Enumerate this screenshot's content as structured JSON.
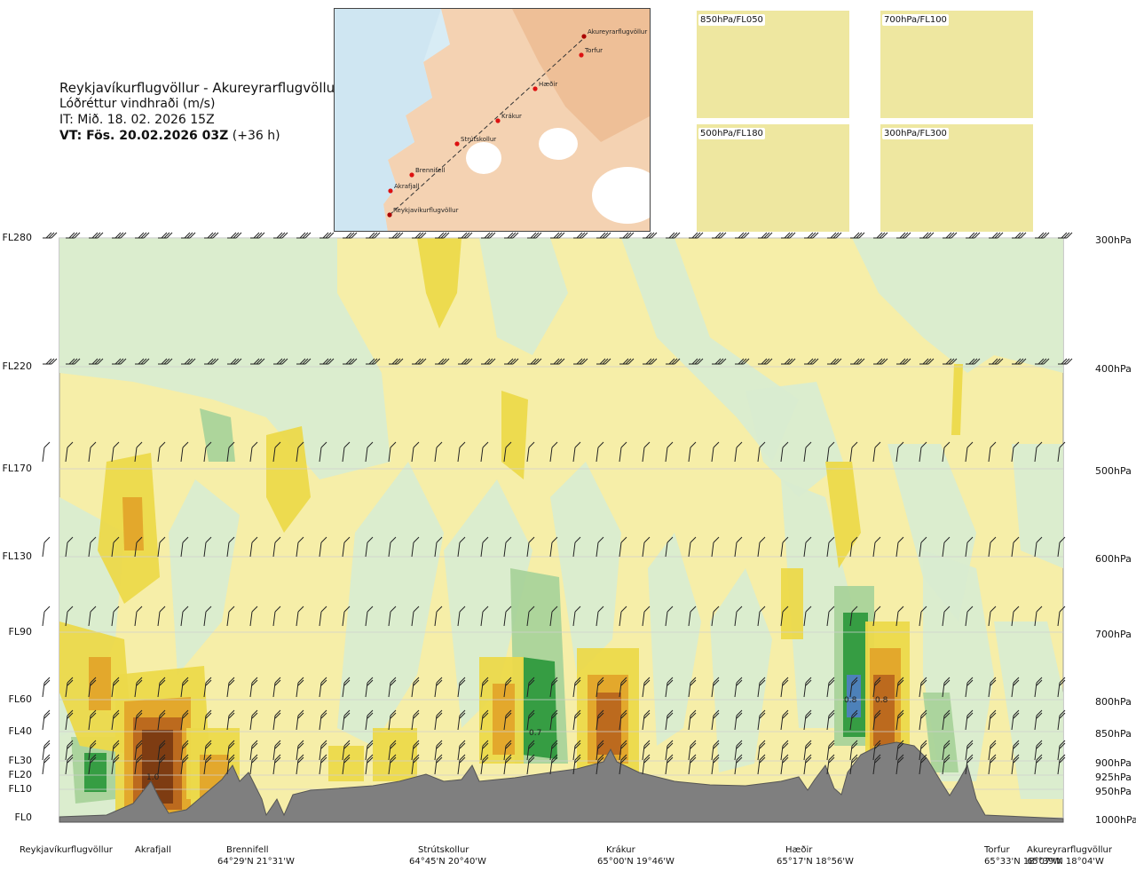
{
  "header": {
    "route": "Reykjavíkurflugvöllur - Akureyrarflugvöllur",
    "variable": "Lóðréttur vindhraði (m/s)",
    "issue_time": "IT: Mið. 18. 02. 2026 15Z",
    "valid_time": "VT: Fös. 20.02.2026 03Z",
    "lead_time": "(+36 h)"
  },
  "map": {
    "waypoints": [
      {
        "name": "Akureyrarflugvöllur"
      },
      {
        "name": "Torfur"
      },
      {
        "name": "Hæðir"
      },
      {
        "name": "Krákur"
      },
      {
        "name": "Strútskollur"
      },
      {
        "name": "Brennifell"
      },
      {
        "name": "Akrafjall"
      },
      {
        "name": "Reykjavíkurflugvöllur"
      }
    ]
  },
  "thumbnails": [
    {
      "label": "850hPa/FL050"
    },
    {
      "label": "700hPa/FL100"
    },
    {
      "label": "500hPa/FL180"
    },
    {
      "label": "300hPa/FL300"
    }
  ],
  "chart_data": {
    "type": "heatmap",
    "title": "Lóðréttur vindhraði (m/s)",
    "flight_levels": [
      "FL280",
      "FL220",
      "FL170",
      "FL130",
      "FL90",
      "FL60",
      "FL40",
      "FL30",
      "FL20",
      "FL10",
      "FL0"
    ],
    "pressure_levels": [
      "300hPa",
      "400hPa",
      "500hPa",
      "600hPa",
      "700hPa",
      "800hPa",
      "850hPa",
      "900hPa",
      "925hPa",
      "950hPa",
      "1000hPa"
    ],
    "locations": [
      {
        "name": "Reykjavíkurflugvöllur",
        "coord": ""
      },
      {
        "name": "Akrafjall",
        "coord": ""
      },
      {
        "name": "Brennifell",
        "coord": "64°29'N 21°31'W"
      },
      {
        "name": "Strútskollur",
        "coord": "64°45'N 20°40'W"
      },
      {
        "name": "Krákur",
        "coord": "65°00'N 19°46'W"
      },
      {
        "name": "Hæðir",
        "coord": "65°17'N 18°56'W"
      },
      {
        "name": "Torfur",
        "coord": "65°33'N 18°07'W"
      },
      {
        "name": "Akureyrarflugvöllur",
        "coord": "65°39'N 18°04'W"
      }
    ],
    "annotations": [
      "1.0",
      "0.7",
      "0.8",
      "0.8"
    ],
    "colors": {
      "background": "#f6eea8",
      "weak_down": "#d9ecd0",
      "mid_down": "#a9d39a",
      "strong_down": "#2f9a3e",
      "strongest_down": "#4f7fc0",
      "weak_up": "#ecd94a",
      "mid_up": "#e3a52a",
      "strong_up": "#b9661e",
      "strongest_up": "#7a3a12",
      "terrain": "#7f7f7f"
    }
  }
}
